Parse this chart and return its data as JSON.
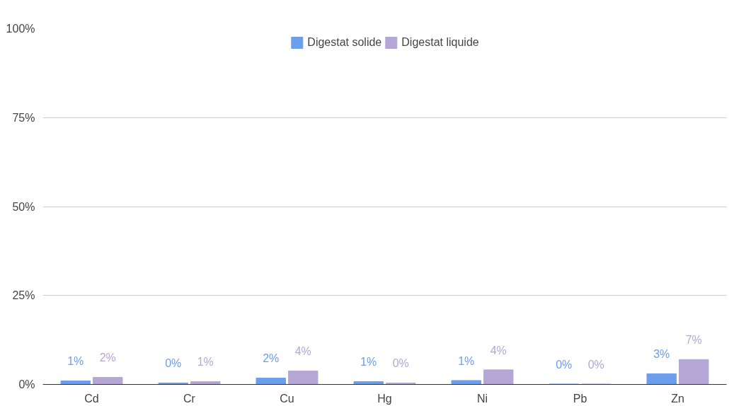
{
  "chart_data": {
    "type": "bar",
    "categories": [
      "Cd",
      "Cr",
      "Cu",
      "Hg",
      "Ni",
      "Pb",
      "Zn"
    ],
    "series": [
      {
        "name": "Digestat solide",
        "color": "#6d9eeb",
        "values": [
          1.0,
          0.4,
          1.8,
          0.8,
          1.1,
          0.1,
          3.0
        ],
        "value_labels": [
          "1%",
          "0%",
          "2%",
          "1%",
          "1%",
          "0%",
          "3%"
        ]
      },
      {
        "name": "Digestat liquide",
        "color": "#b4a7d6",
        "values": [
          2.0,
          0.8,
          3.8,
          0.4,
          4.1,
          0.1,
          7.0
        ],
        "value_labels": [
          "2%",
          "1%",
          "4%",
          "0%",
          "4%",
          "0%",
          "7%"
        ]
      }
    ],
    "ylim": [
      0,
      100
    ],
    "yticks": [
      {
        "value": 0,
        "label": "0%"
      },
      {
        "value": 25,
        "label": "25%"
      },
      {
        "value": 50,
        "label": "50%"
      },
      {
        "value": 75,
        "label": "75%"
      },
      {
        "value": 100,
        "label": "100%"
      }
    ],
    "grid": "y",
    "legend": "top"
  }
}
